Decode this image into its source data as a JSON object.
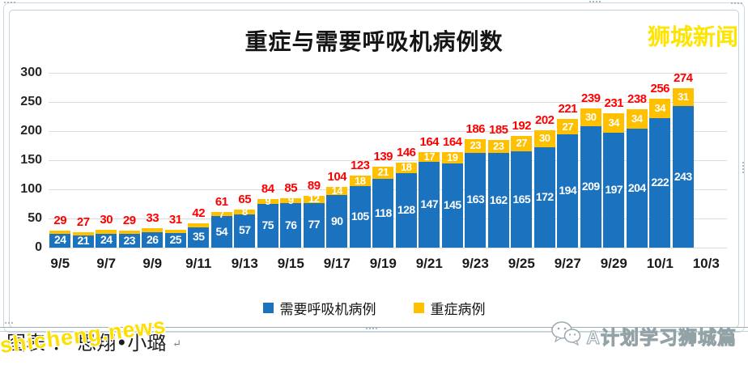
{
  "watermarks": {
    "top_right": "狮城新闻",
    "bottom_left": "shicheng.news",
    "brand": "A计划学习狮城篇"
  },
  "credit": {
    "text": "图表 ： 思翔•小璐",
    "return_mark": "↵"
  },
  "chart_data": {
    "type": "bar",
    "stacked": true,
    "title": "重症与需要呼吸机病例数",
    "ylim": [
      0,
      300
    ],
    "yticks": [
      0,
      50,
      100,
      150,
      200,
      250,
      300
    ],
    "x_tick_labels": [
      "9/5",
      "9/7",
      "9/9",
      "9/11",
      "9/13",
      "9/15",
      "9/17",
      "9/19",
      "9/21",
      "9/23",
      "9/25",
      "9/27",
      "9/29",
      "10/1",
      "10/3"
    ],
    "grid": true,
    "legend_position": "bottom",
    "legend": [
      {
        "label": "需要呼吸机病例",
        "color": "#1b72be"
      },
      {
        "label": "重症病例",
        "color": "#ffc000"
      }
    ],
    "series": [
      {
        "name": "需要呼吸机病例",
        "color": "#1b72be",
        "values": [
          24,
          21,
          24,
          23,
          26,
          25,
          35,
          54,
          57,
          75,
          76,
          77,
          90,
          105,
          118,
          128,
          147,
          145,
          163,
          162,
          165,
          172,
          194,
          209,
          197,
          204,
          222,
          243
        ]
      },
      {
        "name": "重症病例",
        "color": "#ffc000",
        "values": [
          5,
          6,
          6,
          6,
          7,
          6,
          7,
          7,
          8,
          9,
          9,
          12,
          14,
          18,
          21,
          18,
          17,
          19,
          23,
          23,
          27,
          30,
          27,
          30,
          34,
          34,
          34,
          31
        ]
      }
    ],
    "severe_value_labels": [
      "",
      "",
      "",
      "",
      "",
      "",
      "",
      "7",
      "8",
      "9",
      "9",
      "12",
      "14",
      "18",
      "21",
      "18",
      "17",
      "19",
      "23",
      "23",
      "27",
      "30",
      "27",
      "30",
      "34",
      "34",
      "34",
      "31"
    ],
    "totals": [
      29,
      27,
      30,
      29,
      33,
      31,
      42,
      61,
      65,
      84,
      85,
      89,
      104,
      123,
      139,
      146,
      164,
      164,
      186,
      185,
      192,
      202,
      221,
      239,
      231,
      238,
      256,
      274
    ],
    "total_label_color": "#ff0000"
  }
}
